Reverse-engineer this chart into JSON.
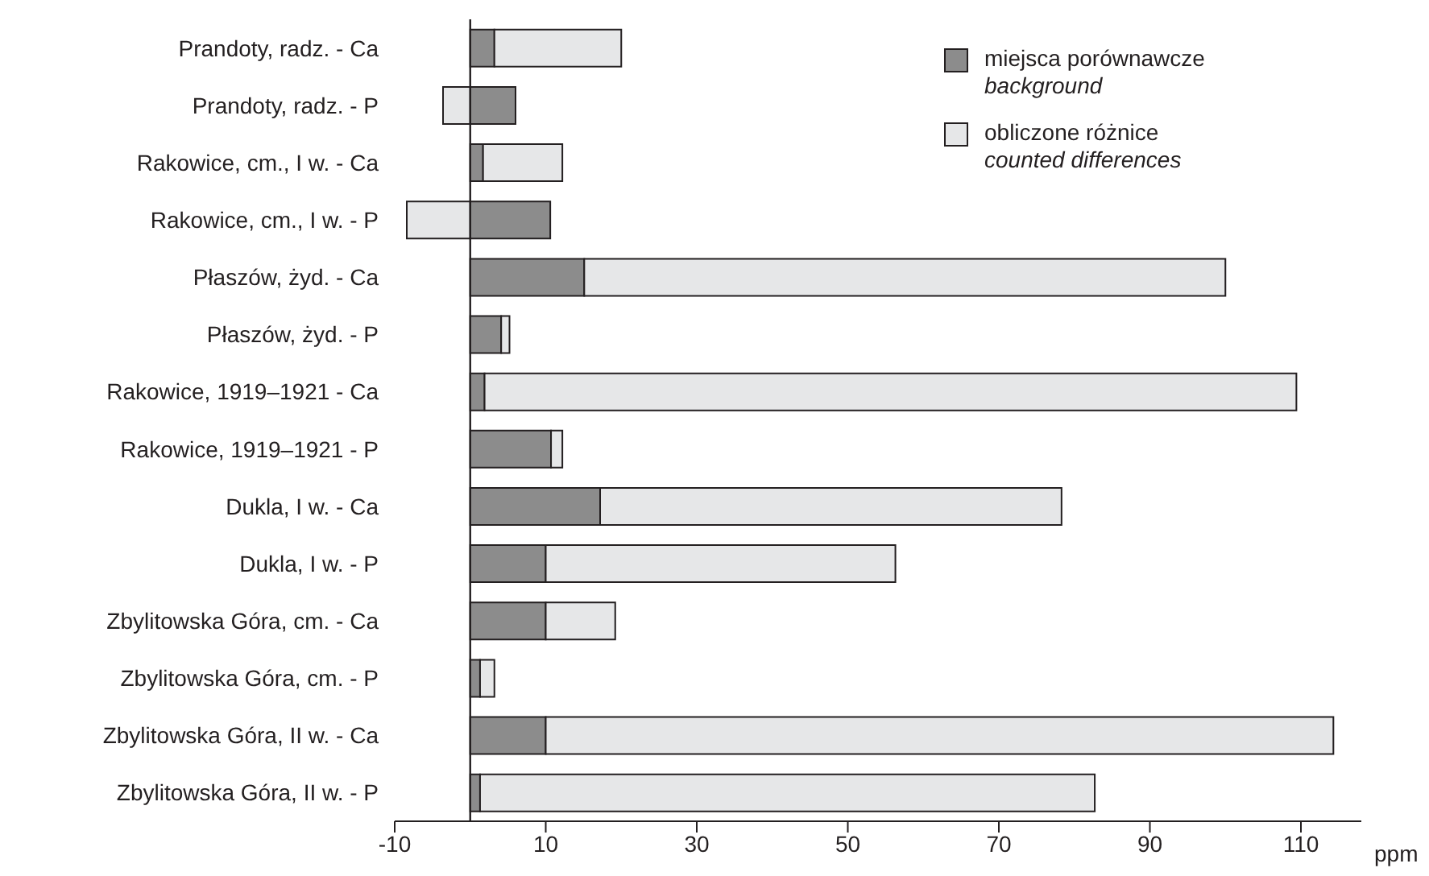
{
  "chart_data": {
    "type": "bar",
    "orientation": "horizontal",
    "stacked": true,
    "xlabel": "ppm",
    "legend": "top right",
    "categories": [
      "Prandoty, radz. - Ca",
      "Prandoty, radz. - P",
      "Rakowice, cm., I w. - Ca",
      "Rakowice, cm., I w. - P",
      "Płaszów, żyd. - Ca",
      "Płaszów, żyd. - P",
      "Rakowice, 1919–1921 - Ca",
      "Rakowice, 1919–1921 - P",
      "Dukla, I w. - Ca",
      "Dukla, I w. - P",
      "Zbylitowska Góra, cm. - Ca",
      "Zbylitowska Góra, cm. - P",
      "Zbylitowska Góra, II w. - Ca",
      "Zbylitowska Góra, II w. - P"
    ],
    "xlim": [
      -10,
      118
    ],
    "xticks": [
      -10,
      10,
      30,
      50,
      70,
      90,
      110
    ],
    "series": [
      {
        "name": "miejsca porównawcze\nbackground",
        "color": "#8c8c8c",
        "values": [
          3.2,
          6,
          1.7,
          10.6,
          15.1,
          4.1,
          1.9,
          10.7,
          17.2,
          10,
          10,
          1.3,
          10,
          1.3
        ]
      },
      {
        "name": "obliczone różnice\ncounted differences",
        "color": "#e6e7e8",
        "values": [
          16.8,
          -3.6,
          10.5,
          -8.4,
          84.9,
          1.1,
          107.5,
          1.5,
          61.1,
          46.3,
          9.2,
          1.9,
          104.3,
          81.4
        ]
      }
    ]
  }
}
